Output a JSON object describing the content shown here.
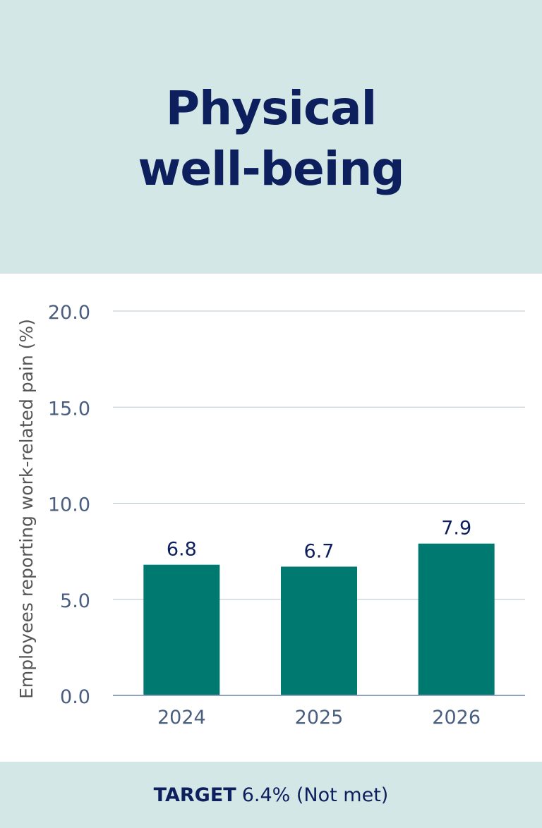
{
  "header": {
    "title_line1": "Physical",
    "title_line2": "well-being"
  },
  "chart_data": {
    "type": "bar",
    "categories": [
      "2024",
      "2025",
      "2026"
    ],
    "values": [
      6.8,
      6.7,
      7.9
    ],
    "value_labels": [
      "6.8",
      "6.7",
      "7.9"
    ],
    "ylabel": "Employees reporting work-related pain (%)",
    "ylim": [
      0,
      20
    ],
    "yticks": [
      0,
      5,
      10,
      15,
      20
    ],
    "ytick_labels": [
      "0.0",
      "5.0",
      "10.0",
      "15.0",
      "20.0"
    ],
    "grid": true,
    "colors": {
      "bar": "#007a70",
      "gridline": "#b8c4cc",
      "axis": "#8fa3c0",
      "tick_text": "#4a5f80",
      "value_text": "#0d1f5c",
      "ylabel_text": "#555555"
    }
  },
  "footer": {
    "label": "TARGET",
    "value": "6.4% (Not met)"
  },
  "colors": {
    "panel_bg": "#d4e7e7",
    "title": "#0d1f5c"
  }
}
